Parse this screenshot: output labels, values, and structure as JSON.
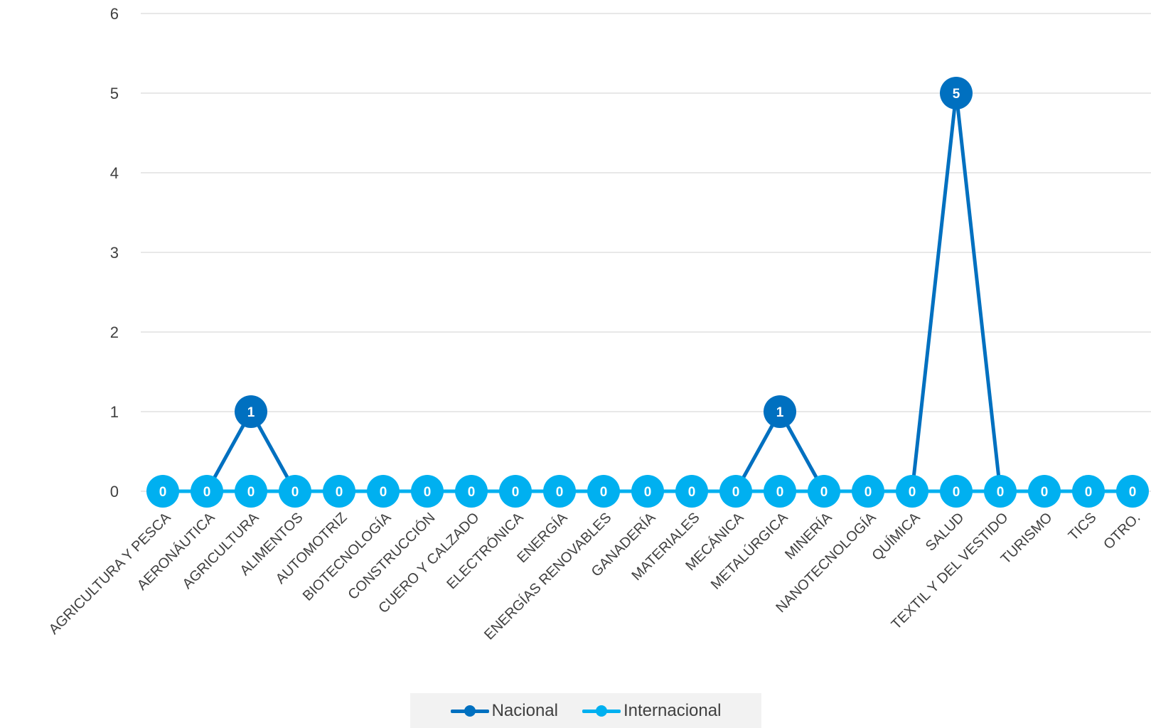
{
  "chart_data": {
    "type": "line",
    "categories": [
      "AGRICULTURA Y PESCA",
      "AERONÁUTICA",
      "AGRICULTURA",
      "ALIMENTOS",
      "AUTOMOTRIZ",
      "BIOTECNOLOGÍA",
      "CONSTRUCCIÓN",
      "CUERO Y CALZADO",
      "ELECTRÓNICA",
      "ENERGÍA",
      "ENERGÍAS RENOVABLES",
      "GANADERÍA",
      "MATERIALES",
      "MECÁNICA",
      "METALÚRGICA",
      "MINERÍA",
      "NANOTECNOLOGÍA",
      "QUÍMICA",
      "SALUD",
      "TEXTIL Y DEL VESTIDO",
      "TURISMO",
      "TICS",
      "OTRO."
    ],
    "series": [
      {
        "name": "Nacional",
        "color": "#0070c0",
        "values": [
          0,
          0,
          1,
          0,
          0,
          0,
          0,
          0,
          0,
          0,
          0,
          0,
          0,
          0,
          1,
          0,
          0,
          0,
          5,
          0,
          0,
          0,
          0
        ]
      },
      {
        "name": "Internacional",
        "color": "#00b0f0",
        "values": [
          0,
          0,
          0,
          0,
          0,
          0,
          0,
          0,
          0,
          0,
          0,
          0,
          0,
          0,
          0,
          0,
          0,
          0,
          0,
          0,
          0,
          0,
          0
        ]
      }
    ],
    "yticks": [
      "0",
      "1",
      "2",
      "3",
      "4",
      "5",
      "6"
    ],
    "ylim": [
      0,
      6
    ],
    "grid": true,
    "data_labels": true,
    "legend_position": "bottom"
  }
}
